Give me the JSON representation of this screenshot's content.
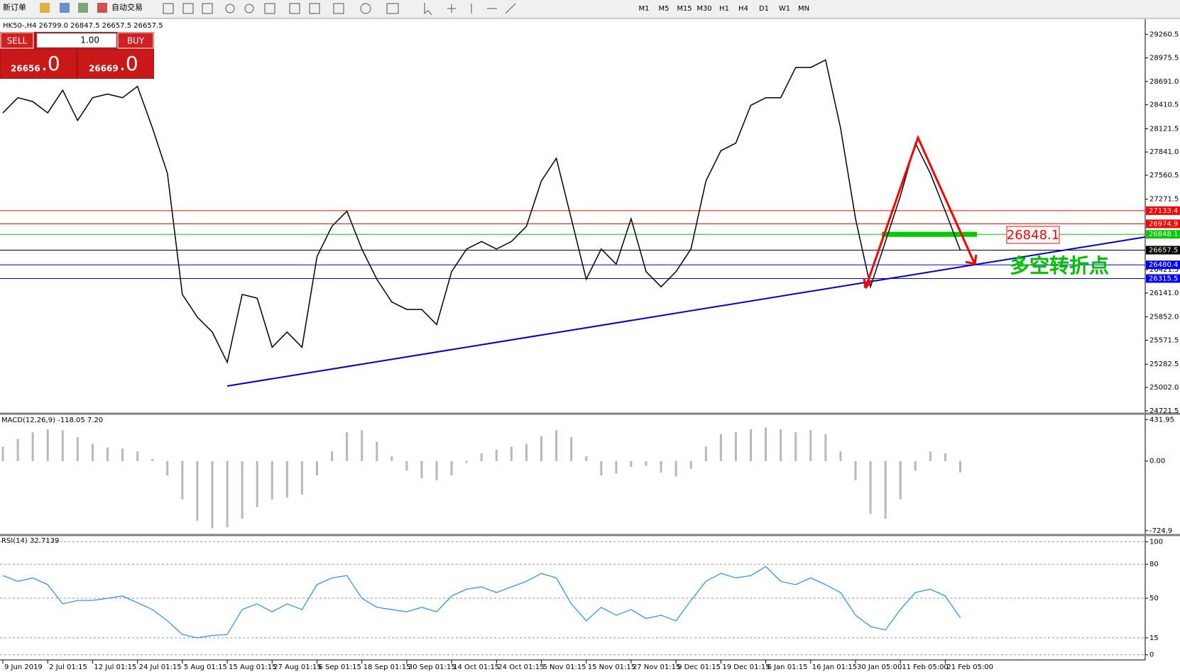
{
  "toolbar": {
    "new_order": "新订单",
    "auto_trading": "自动交易",
    "timeframes": [
      "M1",
      "M5",
      "M15",
      "M30",
      "H1",
      "H4",
      "D1",
      "W1",
      "MN"
    ]
  },
  "trade_panel": {
    "sell": "SELL",
    "buy": "BUY",
    "lot": "1.00",
    "bid_big": "26656",
    "bid_small": ".0",
    "ask_big": "26669",
    "ask_small": ".0"
  },
  "chart_data": [
    {
      "type": "line",
      "title": "HK50-,H4  26799.0 26847.5 26657.5 26657.5",
      "color": "#000000",
      "categories": [
        "9 Jun 2019",
        null,
        null,
        "2 Jul 01:15",
        null,
        null,
        "12 Jul 01:15",
        null,
        null,
        "24 Jul 01:15",
        null,
        null,
        "5 Aug 01:15",
        null,
        null,
        "15 Aug 01:15",
        null,
        null,
        "27 Aug 01:15",
        null,
        null,
        "6 Sep 01:15",
        null,
        null,
        "18 Sep 01:15",
        null,
        null,
        "30 Sep 01:15",
        null,
        null,
        "14 Oct 01:15",
        null,
        null,
        "24 Oct 01:15",
        null,
        null,
        "5 Nov 01:15",
        null,
        null,
        "15 Nov 01:15",
        null,
        null,
        "27 Nov 01:15",
        null,
        null,
        "9 Dec 01:15",
        null,
        null,
        "19 Dec 01:15",
        null,
        null,
        "6 Jan 01:15",
        null,
        null,
        "16 Jan 01:15",
        null,
        null,
        "30 Jan 05:00",
        null,
        null,
        "11 Feb 05:00",
        null,
        null,
        "21 Feb 05:00",
        null
      ],
      "values": [
        28312,
        28495,
        28449,
        28312,
        28586,
        28221,
        28495,
        28540,
        28495,
        28632,
        28130,
        27583,
        26124,
        25851,
        25669,
        25304,
        26124,
        26079,
        25486,
        25669,
        25486,
        26580,
        26945,
        27127,
        26671,
        26306,
        26033,
        25942,
        25942,
        25760,
        26398,
        26671,
        26762,
        26671,
        26762,
        26945,
        27492,
        27765,
        27036,
        26306,
        26671,
        26489,
        27036,
        26398,
        26215,
        26398,
        26671,
        27492,
        27857,
        27948,
        28404,
        28495,
        28495,
        28860,
        28860,
        28951,
        28130,
        27036,
        26215,
        26762,
        27310,
        27948,
        27583,
        27127,
        26657.5
      ],
      "ylim": [
        24694,
        29434
      ],
      "yticks": [
        29260.5,
        28975.5,
        {
          "value": 28691,
          "label": "28691.0"
        },
        28410.5,
        28121.5,
        {
          "value": 27841,
          "label": "27841.0"
        },
        27560.5,
        27271.5,
        26421.5,
        {
          "value": 26141,
          "label": "26141.0"
        },
        {
          "value": 25852,
          "label": "25852.0"
        },
        25571.5,
        25282.5,
        {
          "value": 25002,
          "label": "25002.0"
        },
        24721.5
      ],
      "levels": [
        {
          "value": 27133.4,
          "color": "#ff0000"
        },
        {
          "value": 26974.9,
          "color": "#ff0000"
        },
        {
          "value": 26848.1,
          "color": "#00cc00"
        },
        {
          "value": 26657.5,
          "color": "#000000"
        },
        {
          "value": 26480.4,
          "color": "#0000ff"
        },
        {
          "value": 26315.5,
          "color": "#0000ff"
        }
      ],
      "annotation": "多空转折点"
    },
    {
      "type": "bar",
      "title": "MACD(12,26,9) -118.05 7.20",
      "color": "#b8b8b8",
      "values": [
        150,
        230,
        300,
        330,
        320,
        250,
        180,
        140,
        130,
        100,
        20,
        -150,
        -400,
        -620,
        -700,
        -690,
        -600,
        -480,
        -400,
        -380,
        -350,
        -150,
        100,
        300,
        320,
        200,
        50,
        -100,
        -180,
        -200,
        -150,
        -20,
        80,
        120,
        150,
        180,
        260,
        320,
        250,
        50,
        -150,
        -130,
        -60,
        -50,
        -120,
        -160,
        -80,
        150,
        280,
        300,
        330,
        350,
        330,
        300,
        320,
        280,
        100,
        -200,
        -550,
        -600,
        -400,
        -100,
        100,
        80,
        -118.05
      ],
      "ylim": [
        -756,
        471
      ],
      "yticks": [
        431.95,
        {
          "value": 0,
          "label": "0.00"
        },
        -724.9
      ]
    },
    {
      "type": "line",
      "title": "RSI(14) 32.7139",
      "color": "#1e90ff",
      "grid": true,
      "values": [
        70,
        65,
        68,
        62,
        45,
        48,
        48,
        50,
        52,
        46,
        40,
        30,
        18,
        15,
        17,
        18,
        40,
        45,
        38,
        45,
        40,
        62,
        68,
        70,
        50,
        42,
        40,
        38,
        42,
        38,
        52,
        58,
        60,
        55,
        60,
        65,
        72,
        68,
        45,
        30,
        42,
        35,
        40,
        32,
        35,
        30,
        48,
        65,
        72,
        68,
        70,
        78,
        65,
        62,
        68,
        62,
        55,
        35,
        25,
        22,
        40,
        55,
        58,
        52,
        32.7139
      ],
      "ylim": [
        -3.3,
        104
      ],
      "yticks": [
        100,
        80,
        50,
        15,
        0
      ]
    }
  ]
}
